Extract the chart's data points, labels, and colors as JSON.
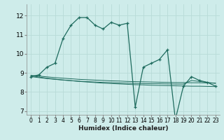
{
  "xlabel": "Humidex (Indice chaleur)",
  "background_color": "#ceecea",
  "grid_color": "#b8dbd8",
  "line_color": "#1e6b5e",
  "xlim": [
    -0.5,
    23.5
  ],
  "ylim": [
    6.8,
    12.6
  ],
  "yticks": [
    7,
    8,
    9,
    10,
    11,
    12
  ],
  "xticks": [
    0,
    1,
    2,
    3,
    4,
    5,
    6,
    7,
    8,
    9,
    10,
    11,
    12,
    13,
    14,
    15,
    16,
    17,
    18,
    19,
    20,
    21,
    22,
    23
  ],
  "lines": [
    {
      "x": [
        0,
        1,
        2,
        3,
        4,
        5,
        6,
        7,
        8,
        9,
        10,
        11,
        12,
        13,
        14,
        15,
        16,
        17,
        18,
        19,
        20,
        21,
        22,
        23
      ],
      "y": [
        8.8,
        8.9,
        9.3,
        9.5,
        10.8,
        11.5,
        11.9,
        11.9,
        11.5,
        11.3,
        11.65,
        11.5,
        11.6,
        7.2,
        9.3,
        9.5,
        9.7,
        10.2,
        6.55,
        8.3,
        8.8,
        8.6,
        8.5,
        8.3
      ],
      "marker": true
    },
    {
      "x": [
        0,
        1,
        2,
        3,
        4,
        5,
        6,
        7,
        8,
        9,
        10,
        11,
        12,
        13,
        14,
        15,
        16,
        17,
        18,
        19,
        20,
        21,
        22,
        23
      ],
      "y": [
        8.85,
        8.78,
        8.72,
        8.67,
        8.63,
        8.59,
        8.55,
        8.52,
        8.49,
        8.46,
        8.44,
        8.42,
        8.4,
        8.38,
        8.37,
        8.35,
        8.34,
        8.33,
        8.32,
        8.31,
        8.3,
        8.3,
        8.29,
        8.28
      ],
      "marker": false
    },
    {
      "x": [
        0,
        1,
        2,
        3,
        4,
        5,
        6,
        7,
        8,
        9,
        10,
        11,
        12,
        13,
        14,
        15,
        16,
        17,
        18,
        19,
        20,
        21,
        22,
        23
      ],
      "y": [
        8.87,
        8.83,
        8.79,
        8.75,
        8.72,
        8.69,
        8.66,
        8.64,
        8.62,
        8.6,
        8.58,
        8.57,
        8.55,
        8.54,
        8.53,
        8.52,
        8.51,
        8.5,
        8.49,
        8.49,
        8.48,
        8.48,
        8.47,
        8.46
      ],
      "marker": false
    },
    {
      "x": [
        0,
        1,
        2,
        3,
        4,
        5,
        6,
        7,
        8,
        9,
        10,
        11,
        12,
        13,
        14,
        15,
        16,
        17,
        18,
        19,
        20,
        21,
        22,
        23
      ],
      "y": [
        8.8,
        8.75,
        8.7,
        8.66,
        8.62,
        8.59,
        8.56,
        8.54,
        8.52,
        8.5,
        8.49,
        8.47,
        8.46,
        8.45,
        8.44,
        8.43,
        8.43,
        8.42,
        8.41,
        8.41,
        8.6,
        8.55,
        8.5,
        8.45
      ],
      "marker": false
    }
  ]
}
